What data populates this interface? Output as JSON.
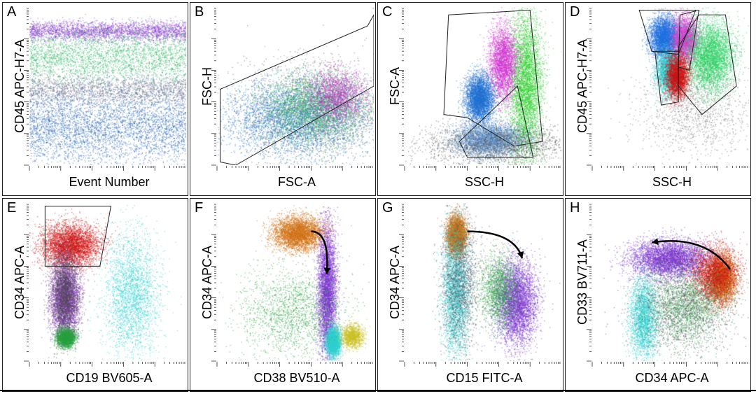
{
  "chart_data": [
    {
      "type": "scatter",
      "panel": "A",
      "xlabel": "Event Number",
      "ylabel": "CD45 APC-H7-A",
      "gates": [],
      "arrows": [],
      "populations": [
        {
          "name": "blue",
          "color": "#1e5fb4",
          "band": true,
          "y": [
            0.55,
            0.95
          ],
          "density": 0.45
        },
        {
          "name": "violet",
          "color": "#8a3ad0",
          "band": true,
          "y": [
            0.1,
            0.2
          ],
          "density": 0.3
        },
        {
          "name": "green",
          "color": "#21b35a",
          "band": true,
          "y": [
            0.18,
            0.45
          ],
          "density": 0.3
        },
        {
          "name": "gray",
          "color": "#6a6a8a",
          "band": true,
          "y": [
            0.45,
            0.6
          ],
          "density": 0.2
        }
      ]
    },
    {
      "type": "scatter",
      "panel": "B",
      "xlabel": "FSC-A",
      "ylabel": "FSC-H",
      "arrows": [],
      "gates": [
        [
          [
            0.02,
            0.98
          ],
          [
            0.02,
            0.52
          ],
          [
            0.96,
            0.12
          ],
          [
            1.0,
            0.05
          ],
          [
            1.0,
            0.5
          ],
          [
            0.12,
            1.0
          ]
        ]
      ],
      "populations": [
        {
          "name": "gray",
          "color": "#555555",
          "x": [
            0.25,
            0.95
          ],
          "y": [
            0.92,
            0.4
          ],
          "density": 0.25
        },
        {
          "name": "blue",
          "color": "#2070c8",
          "x": [
            0.1,
            0.9
          ],
          "y": [
            0.9,
            0.5
          ],
          "density": 0.45
        },
        {
          "name": "green",
          "color": "#26c052",
          "x": [
            0.35,
            0.92
          ],
          "y": [
            0.82,
            0.45
          ],
          "density": 0.3
        },
        {
          "name": "magenta",
          "color": "#c030c0",
          "x": [
            0.6,
            0.92
          ],
          "y": [
            0.7,
            0.42
          ],
          "density": 0.2
        }
      ]
    },
    {
      "type": "scatter",
      "panel": "C",
      "xlabel": "SSC-H",
      "ylabel": "FSC-A",
      "arrows": [],
      "gates": [
        [
          [
            0.28,
            0.05
          ],
          [
            0.8,
            0.02
          ],
          [
            0.88,
            0.85
          ],
          [
            0.7,
            0.88
          ],
          [
            0.4,
            0.7
          ],
          [
            0.25,
            0.68
          ]
        ],
        [
          [
            0.35,
            0.85
          ],
          [
            0.72,
            0.5
          ],
          [
            0.82,
            0.95
          ],
          [
            0.4,
            0.95
          ]
        ]
      ],
      "populations": [
        {
          "name": "green",
          "color": "#22d022",
          "x": [
            0.68,
            0.86
          ],
          "y": [
            0.1,
            0.88
          ],
          "density": 0.5
        },
        {
          "name": "magenta",
          "color": "#d030d0",
          "x": [
            0.55,
            0.7
          ],
          "y": [
            0.15,
            0.55
          ],
          "density": 0.35
        },
        {
          "name": "blue",
          "color": "#1e6fd0",
          "x": [
            0.4,
            0.55
          ],
          "y": [
            0.45,
            0.7
          ],
          "density": 0.45
        },
        {
          "name": "lightblue",
          "color": "#5a96d8",
          "x": [
            0.35,
            0.72
          ],
          "y": [
            0.75,
            0.92
          ],
          "density": 0.4
        },
        {
          "name": "gray",
          "color": "#555555",
          "x": [
            0.2,
            0.95
          ],
          "y": [
            0.75,
            0.98
          ],
          "density": 0.25
        }
      ]
    },
    {
      "type": "scatter",
      "panel": "D",
      "xlabel": "SSC-H",
      "ylabel": "CD45 APC-H7-A",
      "arrows": [],
      "gates": [
        [
          [
            0.3,
            0.02
          ],
          [
            0.66,
            0.02
          ],
          [
            0.55,
            0.3
          ],
          [
            0.38,
            0.28
          ]
        ],
        [
          [
            0.4,
            0.28
          ],
          [
            0.55,
            0.28
          ],
          [
            0.55,
            0.6
          ],
          [
            0.44,
            0.62
          ]
        ],
        [
          [
            0.55,
            0.25
          ],
          [
            0.68,
            0.05
          ],
          [
            0.85,
            0.05
          ],
          [
            0.92,
            0.5
          ],
          [
            0.7,
            0.68
          ],
          [
            0.55,
            0.5
          ]
        ],
        [
          [
            0.56,
            0.05
          ],
          [
            0.68,
            0.02
          ],
          [
            0.62,
            0.4
          ],
          [
            0.55,
            0.38
          ]
        ]
      ],
      "populations": [
        {
          "name": "blue",
          "color": "#1e6fe0",
          "x": [
            0.38,
            0.54
          ],
          "y": [
            0.08,
            0.3
          ],
          "density": 0.45
        },
        {
          "name": "magenta",
          "color": "#d040d0",
          "x": [
            0.52,
            0.66
          ],
          "y": [
            0.08,
            0.32
          ],
          "density": 0.35
        },
        {
          "name": "green",
          "color": "#26d060",
          "x": [
            0.62,
            0.88
          ],
          "y": [
            0.12,
            0.5
          ],
          "density": 0.5
        },
        {
          "name": "cyan",
          "color": "#30d0d0",
          "x": [
            0.42,
            0.55
          ],
          "y": [
            0.3,
            0.52
          ],
          "density": 0.35
        },
        {
          "name": "red",
          "color": "#d01010",
          "x": [
            0.48,
            0.6
          ],
          "y": [
            0.32,
            0.55
          ],
          "density": 0.35
        },
        {
          "name": "gray",
          "color": "#777777",
          "x": [
            0.35,
            0.95
          ],
          "y": [
            0.4,
            0.9
          ],
          "density": 0.15
        }
      ]
    },
    {
      "type": "scatter",
      "panel": "E",
      "xlabel": "CD19 BV605-A",
      "ylabel": "CD34 APC-A",
      "arrows": [],
      "gates": [
        [
          [
            0.1,
            0.02
          ],
          [
            0.52,
            0.02
          ],
          [
            0.45,
            0.4
          ],
          [
            0.1,
            0.4
          ]
        ]
      ],
      "populations": [
        {
          "name": "red",
          "color": "#d01010",
          "x": [
            0.1,
            0.42
          ],
          "y": [
            0.15,
            0.38
          ],
          "density": 0.45
        },
        {
          "name": "purple",
          "color": "#8a30c8",
          "x": [
            0.15,
            0.3
          ],
          "y": [
            0.4,
            0.8
          ],
          "density": 0.4
        },
        {
          "name": "darkgray",
          "color": "#4a4a4a",
          "x": [
            0.15,
            0.3
          ],
          "y": [
            0.35,
            0.8
          ],
          "density": 0.25
        },
        {
          "name": "green",
          "color": "#28a040",
          "x": [
            0.18,
            0.28
          ],
          "y": [
            0.8,
            0.9
          ],
          "density": 0.25
        },
        {
          "name": "cyan",
          "color": "#30d0d0",
          "x": [
            0.5,
            0.8
          ],
          "y": [
            0.25,
            0.9
          ],
          "density": 0.3
        }
      ]
    },
    {
      "type": "scatter",
      "panel": "F",
      "xlabel": "CD38 BV510-A",
      "ylabel": "CD34 APC-A",
      "gates": [],
      "arrows": [
        [
          [
            0.6,
            0.18
          ],
          [
            0.72,
            0.18
          ],
          [
            0.7,
            0.45
          ]
        ]
      ],
      "populations": [
        {
          "name": "orange",
          "color": "#d07010",
          "x": [
            0.38,
            0.65
          ],
          "y": [
            0.1,
            0.28
          ],
          "density": 0.45
        },
        {
          "name": "purple",
          "color": "#7a30d0",
          "x": [
            0.65,
            0.75
          ],
          "y": [
            0.2,
            0.9
          ],
          "density": 0.5
        },
        {
          "name": "cyan",
          "color": "#30d0d0",
          "x": [
            0.7,
            0.78
          ],
          "y": [
            0.8,
            0.95
          ],
          "density": 0.3
        },
        {
          "name": "green",
          "color": "#28a040",
          "x": [
            0.2,
            0.75
          ],
          "y": [
            0.45,
            0.92
          ],
          "density": 0.2
        },
        {
          "name": "yellow",
          "color": "#c8c020",
          "x": [
            0.8,
            0.92
          ],
          "y": [
            0.78,
            0.9
          ],
          "density": 0.15
        }
      ]
    },
    {
      "type": "scatter",
      "panel": "G",
      "xlabel": "CD15 FITC-A",
      "ylabel": "CD34 APC-A",
      "gates": [],
      "arrows": [
        [
          [
            0.4,
            0.18
          ],
          [
            0.7,
            0.18
          ],
          [
            0.75,
            0.35
          ]
        ]
      ],
      "populations": [
        {
          "name": "orange",
          "color": "#d07010",
          "x": [
            0.28,
            0.38
          ],
          "y": [
            0.1,
            0.3
          ],
          "density": 0.45
        },
        {
          "name": "purple",
          "color": "#7a30d0",
          "x": [
            0.6,
            0.82
          ],
          "y": [
            0.4,
            0.85
          ],
          "density": 0.5
        },
        {
          "name": "cyan",
          "color": "#30d0d0",
          "x": [
            0.25,
            0.4
          ],
          "y": [
            0.2,
            0.9
          ],
          "density": 0.35
        },
        {
          "name": "green",
          "color": "#28a040",
          "x": [
            0.5,
            0.7
          ],
          "y": [
            0.35,
            0.75
          ],
          "density": 0.2
        },
        {
          "name": "darkgray",
          "color": "#505060",
          "x": [
            0.25,
            0.45
          ],
          "y": [
            0.15,
            0.85
          ],
          "density": 0.2
        }
      ]
    },
    {
      "type": "scatter",
      "panel": "H",
      "xlabel": "CD34 APC-A",
      "ylabel": "CD33 BV711-A",
      "gates": [],
      "arrows": [
        [
          [
            0.88,
            0.42
          ],
          [
            0.72,
            0.2
          ],
          [
            0.38,
            0.25
          ]
        ]
      ],
      "populations": [
        {
          "name": "purple",
          "color": "#7a30d0",
          "x": [
            0.28,
            0.7
          ],
          "y": [
            0.25,
            0.45
          ],
          "density": 0.5
        },
        {
          "name": "orange",
          "color": "#d07010",
          "x": [
            0.75,
            0.9
          ],
          "y": [
            0.35,
            0.6
          ],
          "density": 0.4
        },
        {
          "name": "red",
          "color": "#d01010",
          "x": [
            0.65,
            0.9
          ],
          "y": [
            0.3,
            0.6
          ],
          "density": 0.3
        },
        {
          "name": "cyan",
          "color": "#30d0d0",
          "x": [
            0.25,
            0.4
          ],
          "y": [
            0.5,
            0.95
          ],
          "density": 0.3
        },
        {
          "name": "green",
          "color": "#28a040",
          "x": [
            0.4,
            0.8
          ],
          "y": [
            0.45,
            0.85
          ],
          "density": 0.2
        },
        {
          "name": "darkgray",
          "color": "#505060",
          "x": [
            0.3,
            0.85
          ],
          "y": [
            0.4,
            0.9
          ],
          "density": 0.2
        }
      ]
    }
  ]
}
